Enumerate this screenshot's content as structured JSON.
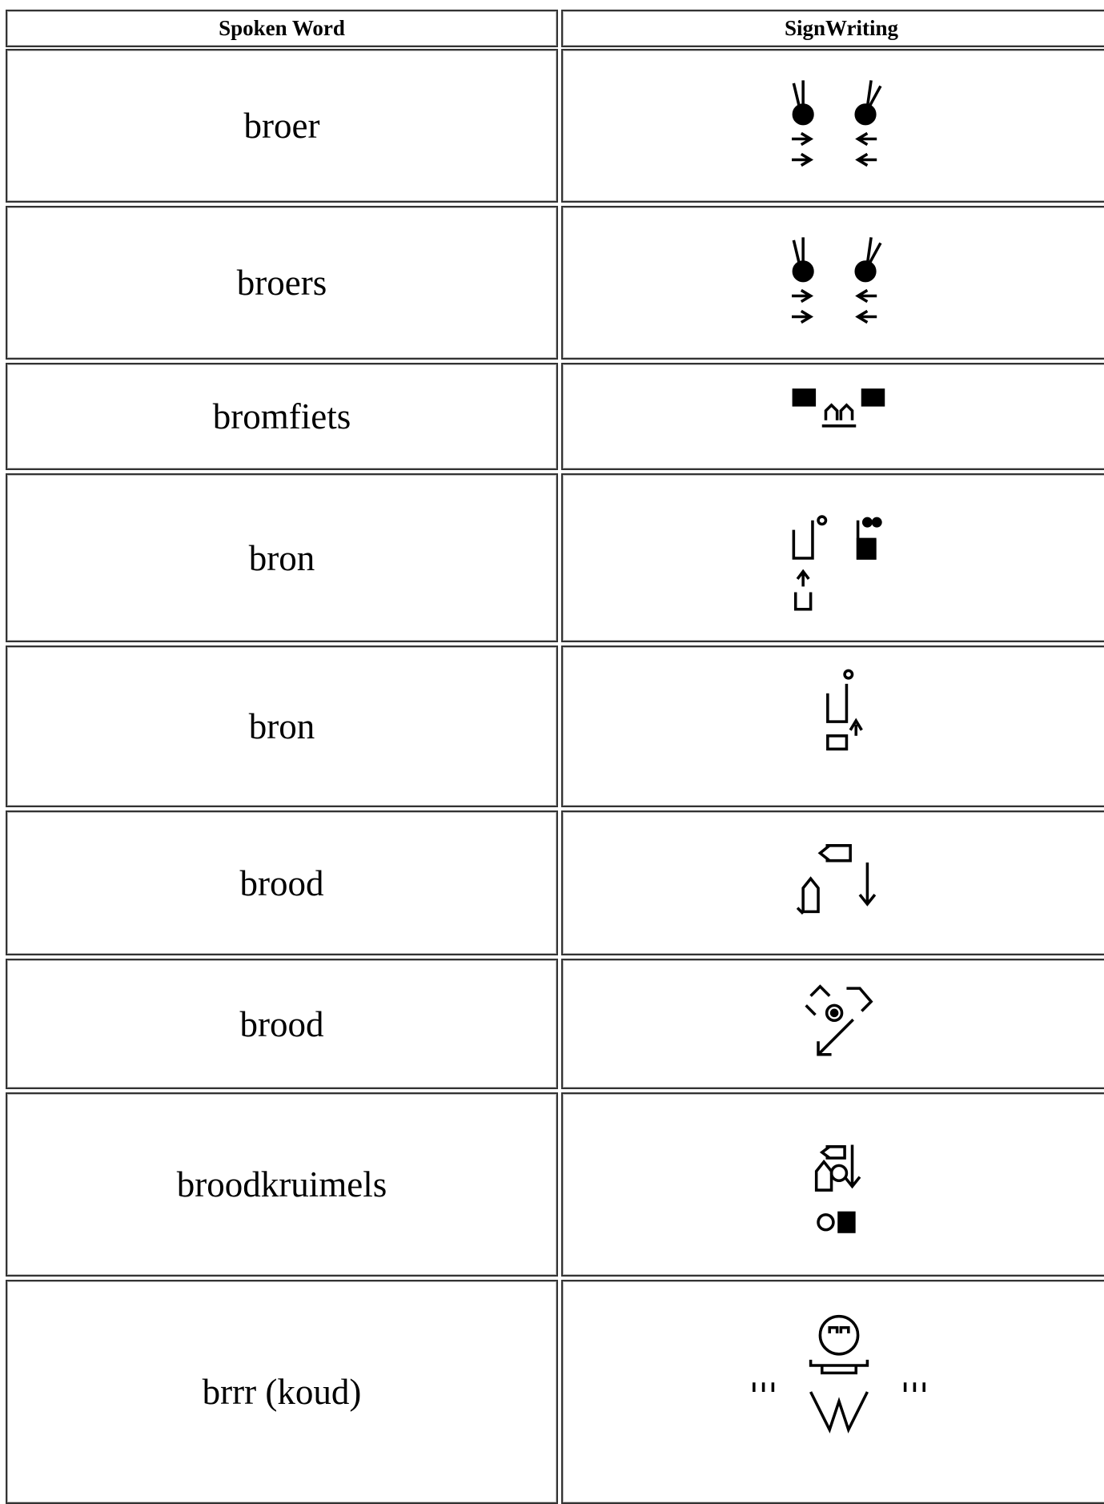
{
  "header": {
    "spoken_word": "Spoken Word",
    "signwriting": "SignWriting"
  },
  "rows": [
    "broer",
    "broers",
    "bromfiets",
    "bron",
    "bron",
    "brood",
    "brood",
    "broodkruimels",
    "brrr (koud)"
  ]
}
